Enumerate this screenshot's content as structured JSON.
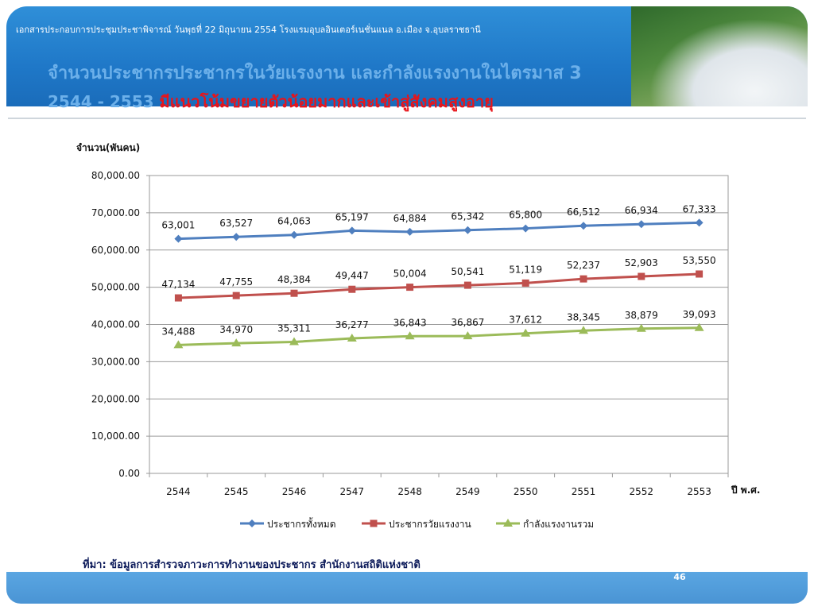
{
  "header": {
    "caption": "เอกสารประกอบการประชุมประชาพิจารณ์ วันพุธที่ 22 มิถุนายน 2554 โรงแรมอุบลอินเตอร์เนชั่นแนล อ.เมือง จ.อุบลราชธานี",
    "title_line1": "จำนวนประชากรประชากรในวัยแรงงาน และกำลังแรงงานในไตรมาส 3",
    "title_line2_prefix": "2544 - 2553",
    "title_line2": "มีแนวโน้มขยายตัวน้อยมากและเข้าสู่สังคมสูงอายุ"
  },
  "source": "ที่มา: ข้อมูลการสำรวจภาวะการทำงานของประชากร สำนักงานสถิติแห่งชาติ",
  "page_number": "46",
  "colors": {
    "series1": "#4f7fbf",
    "series2": "#c0504d",
    "series3": "#9bbb59",
    "header": "#1f78c8",
    "title_red": "#e8141a"
  },
  "chart_data": {
    "type": "line",
    "ylabel": "จำนวน(พันคน)",
    "xlabel": "ปี พ.ศ.",
    "categories": [
      "2544",
      "2545",
      "2546",
      "2547",
      "2548",
      "2549",
      "2550",
      "2551",
      "2552",
      "2553"
    ],
    "ylim": [
      0,
      80000
    ],
    "yticks": [
      "0.00",
      "10,000.00",
      "20,000.00",
      "30,000.00",
      "40,000.00",
      "50,000.00",
      "60,000.00",
      "70,000.00",
      "80,000.00"
    ],
    "grid": true,
    "legend_position": "bottom",
    "series": [
      {
        "name": "ประชากรทั้งหมด",
        "marker": "diamond",
        "values": [
          63001,
          63527,
          64063,
          65197,
          64884,
          65342,
          65800,
          66512,
          66934,
          67333
        ],
        "labels": [
          "63,001",
          "63,527",
          "64,063",
          "65,197",
          "64,884",
          "65,342",
          "65,800",
          "66,512",
          "66,934",
          "67,333"
        ]
      },
      {
        "name": "ประชากรวัยแรงงาน",
        "marker": "square",
        "values": [
          47134,
          47755,
          48384,
          49447,
          50004,
          50541,
          51119,
          52237,
          52903,
          53550
        ],
        "labels": [
          "47,134",
          "47,755",
          "48,384",
          "49,447",
          "50,004",
          "50,541",
          "51,119",
          "52,237",
          "52,903",
          "53,550"
        ]
      },
      {
        "name": "กำลังแรงงานรวม",
        "marker": "triangle",
        "values": [
          34488,
          34970,
          35311,
          36277,
          36843,
          36867,
          37612,
          38345,
          38879,
          39093
        ],
        "labels": [
          "34,488",
          "34,970",
          "35,311",
          "36,277",
          "36,843",
          "36,867",
          "37,612",
          "38,345",
          "38,879",
          "39,093"
        ]
      }
    ]
  }
}
